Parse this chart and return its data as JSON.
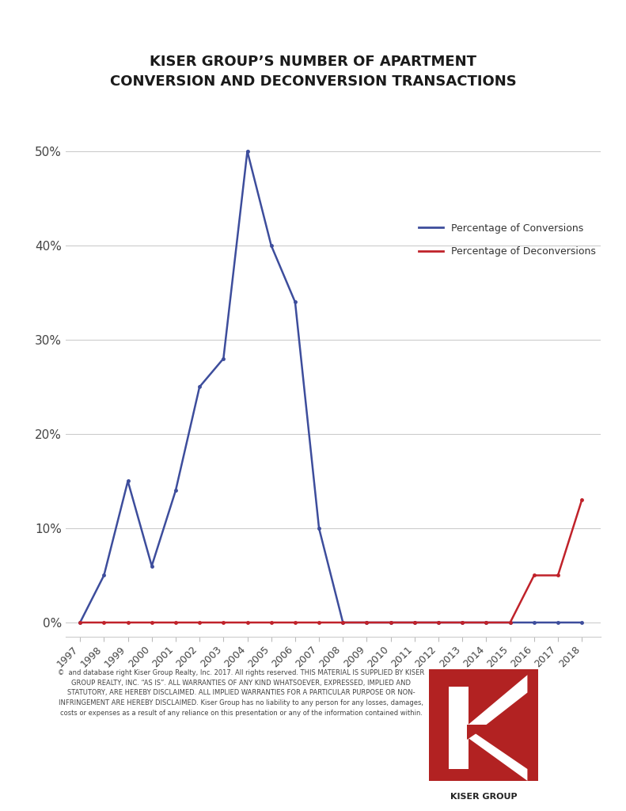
{
  "years": [
    1997,
    1998,
    1999,
    2000,
    2001,
    2002,
    2003,
    2004,
    2005,
    2006,
    2007,
    2008,
    2009,
    2010,
    2011,
    2012,
    2013,
    2014,
    2015,
    2016,
    2017,
    2018
  ],
  "conversions": [
    0,
    5,
    15,
    6,
    14,
    25,
    28,
    50,
    40,
    34,
    10,
    0,
    0,
    0,
    0,
    0,
    0,
    0,
    0,
    0,
    0,
    0
  ],
  "deconversions": [
    0,
    0,
    0,
    0,
    0,
    0,
    0,
    0,
    0,
    0,
    0,
    0,
    0,
    0,
    0,
    0,
    0,
    0,
    0,
    5,
    5,
    13
  ],
  "conversion_color": "#3D4D9C",
  "deconversion_color": "#C0222A",
  "title_line1": "KISER GROUP’S NUMBER OF APARTMENT",
  "title_line2": "CONVERSION AND DECONVERSION TRANSACTIONS",
  "legend_conversion": "Percentage of Conversions",
  "legend_deconversion": "Percentage of Deconversions",
  "ytick_vals": [
    0,
    10,
    20,
    30,
    40,
    50
  ],
  "ylim": [
    -1.5,
    54
  ],
  "xlim": [
    1996.4,
    2018.8
  ],
  "background_color": "#FFFFFF",
  "grid_color": "#CCCCCC",
  "disclaimer_lines": [
    "©  and database right Kiser Group Realty, Inc. 2017. All rights reserved. THIS MATERIAL IS SUPPLIED BY KISER",
    "GROUP REALTY, INC. “AS IS”. ALL WARRANTIES OF ANY KIND WHATSOEVER, EXPRESSED, IMPLIED AND",
    "STATUTORY, ARE HEREBY DISCLAIMED. ALL IMPLIED WARRANTIES FOR A PARTICULAR PURPOSE OR NON-",
    "INFRINGEMENT ARE HEREBY DISCLAIMED. Kiser Group has no liability to any person for any losses, damages,",
    "costs or expenses as a result of any reliance on this presentation or any of the information contained within."
  ],
  "kiser_group_red": "#B22222",
  "title_fontsize": 13,
  "tick_fontsize": 9,
  "legend_fontsize": 9
}
